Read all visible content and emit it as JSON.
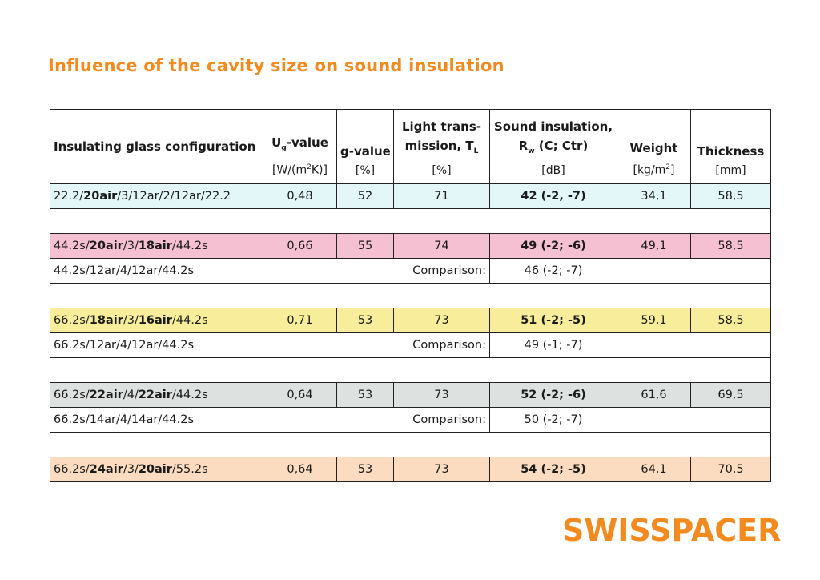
{
  "title": "Influence of the cavity size on sound insulation",
  "colors": {
    "accent": "#f28a1e",
    "cyan": "#e3f7f9",
    "pink": "#f6c0d3",
    "yellow": "#f7ed9b",
    "gray": "#dde2e0",
    "peach": "#fbdcc0"
  },
  "headers": {
    "config": "Insulating glass configuration",
    "ug_main": "U",
    "ug_sub": "g",
    "ug_tail": "-value",
    "ug_unit_pre": "[W/(m",
    "ug_unit_sup": "2",
    "ug_unit_post": "K)]",
    "g_main": "g-value",
    "g_unit": "[%]",
    "lt_line1": "Light trans-",
    "lt_line2_pre": "mission, T",
    "lt_line2_sub": "L",
    "lt_unit": "[%]",
    "si_line1": "Sound insulation,",
    "si_line2_pre": "R",
    "si_line2_sub": "w",
    "si_line2_post": " (C; Ctr)",
    "si_unit": "[dB]",
    "weight": "Weight",
    "weight_unit_pre": "[kg/m",
    "weight_unit_sup": "2",
    "weight_unit_post": "]",
    "thickness": "Thickness",
    "thickness_unit": "[mm]"
  },
  "rows": [
    {
      "color": "#e3f7f9",
      "cfg": [
        "22.2/",
        "20air",
        "/3/12ar/2/12ar/22.2"
      ],
      "ug": "0,48",
      "g": "52",
      "lt": "71",
      "si": "42 (-2, -7)",
      "weight": "34,1",
      "thickness": "58,5"
    },
    {
      "color": "#f6c0d3",
      "cfg": [
        "44.2s/",
        "20air",
        "/3/",
        "18air",
        "/44.2s"
      ],
      "ug": "0,66",
      "g": "55",
      "lt": "74",
      "si": "49 (-2; -6)",
      "weight": "49,1",
      "thickness": "58,5"
    },
    {
      "color": "#f7ed9b",
      "cfg": [
        "66.2s/",
        "18air",
        "/3/",
        "16air",
        "/44.2s"
      ],
      "ug": "0,71",
      "g": "53",
      "lt": "73",
      "si": "51 (-2; -5)",
      "weight": "59,1",
      "thickness": "58,5"
    },
    {
      "color": "#dde2e0",
      "cfg": [
        "66.2s/",
        "22air",
        "/4/",
        "22air",
        "/44.2s"
      ],
      "ug": "0,64",
      "g": "53",
      "lt": "73",
      "si": "52 (-2; -6)",
      "weight": "61,6",
      "thickness": "69,5"
    },
    {
      "color": "#fbdcc0",
      "cfg": [
        "66.2s/",
        "24air",
        "/3/",
        "20air",
        "/55.2s"
      ],
      "ug": "0,64",
      "g": "53",
      "lt": "73",
      "si": "54 (-2; -5)",
      "weight": "64,1",
      "thickness": "70,5"
    }
  ],
  "comparisons": [
    {
      "cfg": "44.2s/12ar/4/12ar/44.2s",
      "label": "Comparison:",
      "si": "46 (-2; -7)"
    },
    {
      "cfg": "66.2s/12ar/4/12ar/44.2s",
      "label": "Comparison:",
      "si": "49 (-1; -7)"
    },
    {
      "cfg": "66.2s/14ar/4/14ar/44.2s",
      "label": "Comparison:",
      "si": "50 (-2; -7)"
    }
  ],
  "logo": "SWISSPACER"
}
